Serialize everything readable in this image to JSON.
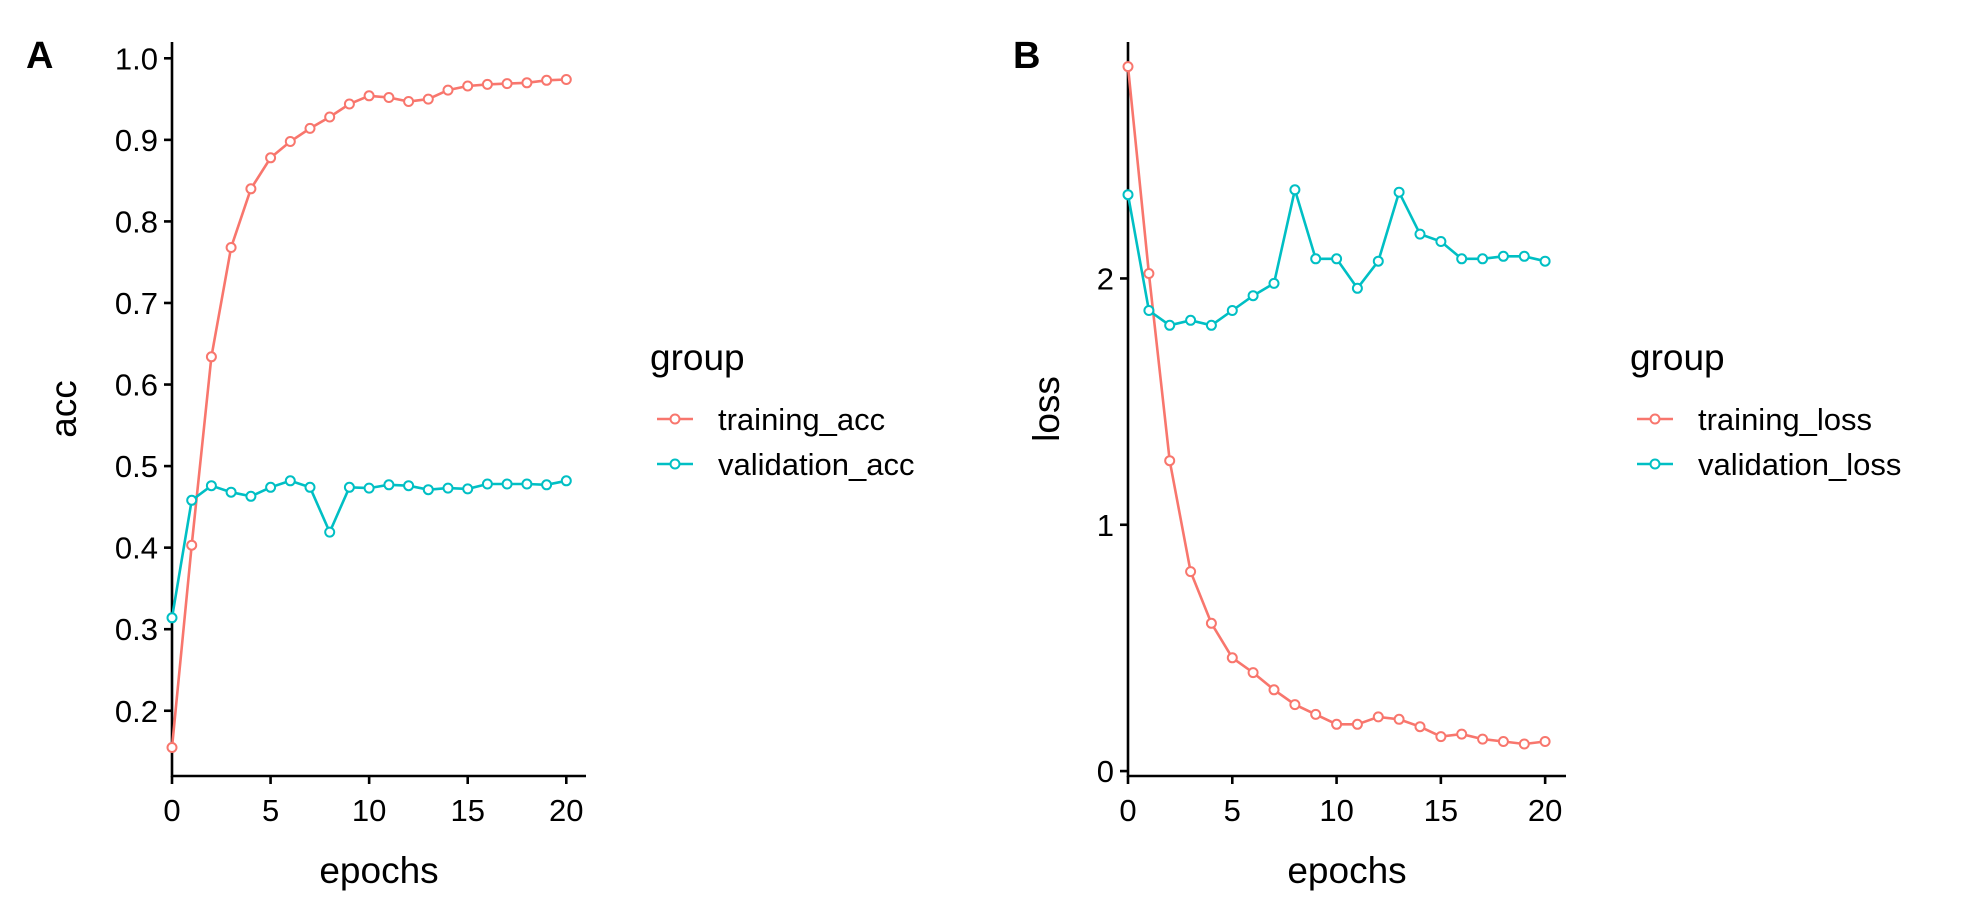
{
  "chart_data": [
    {
      "panel": "A",
      "type": "line",
      "xlabel": "epochs",
      "ylabel": "acc",
      "xlim": [
        0,
        21
      ],
      "ylim": [
        0.12,
        1.02
      ],
      "xticks": [
        0,
        5,
        10,
        15,
        20
      ],
      "yticks": [
        0.2,
        0.3,
        0.4,
        0.5,
        0.6,
        0.7,
        0.8,
        0.9,
        1.0
      ],
      "ytick_labels": [
        "0.2",
        "0.3",
        "0.4",
        "0.5",
        "0.6",
        "0.7",
        "0.8",
        "0.9",
        "1.0"
      ],
      "grid": false,
      "legend_title": "group",
      "legend_position": "right",
      "x": [
        0,
        1,
        2,
        3,
        4,
        5,
        6,
        7,
        8,
        9,
        10,
        11,
        12,
        13,
        14,
        15,
        16,
        17,
        18,
        19,
        20
      ],
      "series": [
        {
          "name": "training_acc",
          "color": "#F8766D",
          "values": [
            0.155,
            0.403,
            0.634,
            0.768,
            0.84,
            0.878,
            0.898,
            0.914,
            0.928,
            0.944,
            0.954,
            0.952,
            0.947,
            0.95,
            0.961,
            0.966,
            0.968,
            0.969,
            0.97,
            0.973,
            0.974
          ]
        },
        {
          "name": "validation_acc",
          "color": "#00BFC4",
          "values": [
            0.314,
            0.458,
            0.476,
            0.468,
            0.463,
            0.474,
            0.482,
            0.474,
            0.419,
            0.474,
            0.473,
            0.477,
            0.476,
            0.471,
            0.473,
            0.472,
            0.478,
            0.478,
            0.478,
            0.477,
            0.482
          ]
        }
      ]
    },
    {
      "panel": "B",
      "type": "line",
      "xlabel": "epochs",
      "ylabel": "loss",
      "xlim": [
        0,
        21
      ],
      "ylim": [
        -0.02,
        2.96
      ],
      "xticks": [
        0,
        5,
        10,
        15,
        20
      ],
      "yticks": [
        0,
        1,
        2
      ],
      "ytick_labels": [
        "0",
        "1",
        "2"
      ],
      "grid": false,
      "legend_title": "group",
      "legend_position": "right",
      "x": [
        0,
        1,
        2,
        3,
        4,
        5,
        6,
        7,
        8,
        9,
        10,
        11,
        12,
        13,
        14,
        15,
        16,
        17,
        18,
        19,
        20
      ],
      "series": [
        {
          "name": "training_loss",
          "color": "#F8766D",
          "values": [
            2.86,
            2.02,
            1.26,
            0.81,
            0.6,
            0.46,
            0.4,
            0.33,
            0.27,
            0.23,
            0.19,
            0.19,
            0.22,
            0.21,
            0.18,
            0.14,
            0.15,
            0.13,
            0.12,
            0.11,
            0.12
          ]
        },
        {
          "name": "validation_loss",
          "color": "#00BFC4",
          "values": [
            2.34,
            1.87,
            1.81,
            1.83,
            1.81,
            1.87,
            1.93,
            1.98,
            2.36,
            2.08,
            2.08,
            1.96,
            2.07,
            2.35,
            2.18,
            2.15,
            2.08,
            2.08,
            2.09,
            2.09,
            2.07
          ]
        }
      ]
    }
  ]
}
